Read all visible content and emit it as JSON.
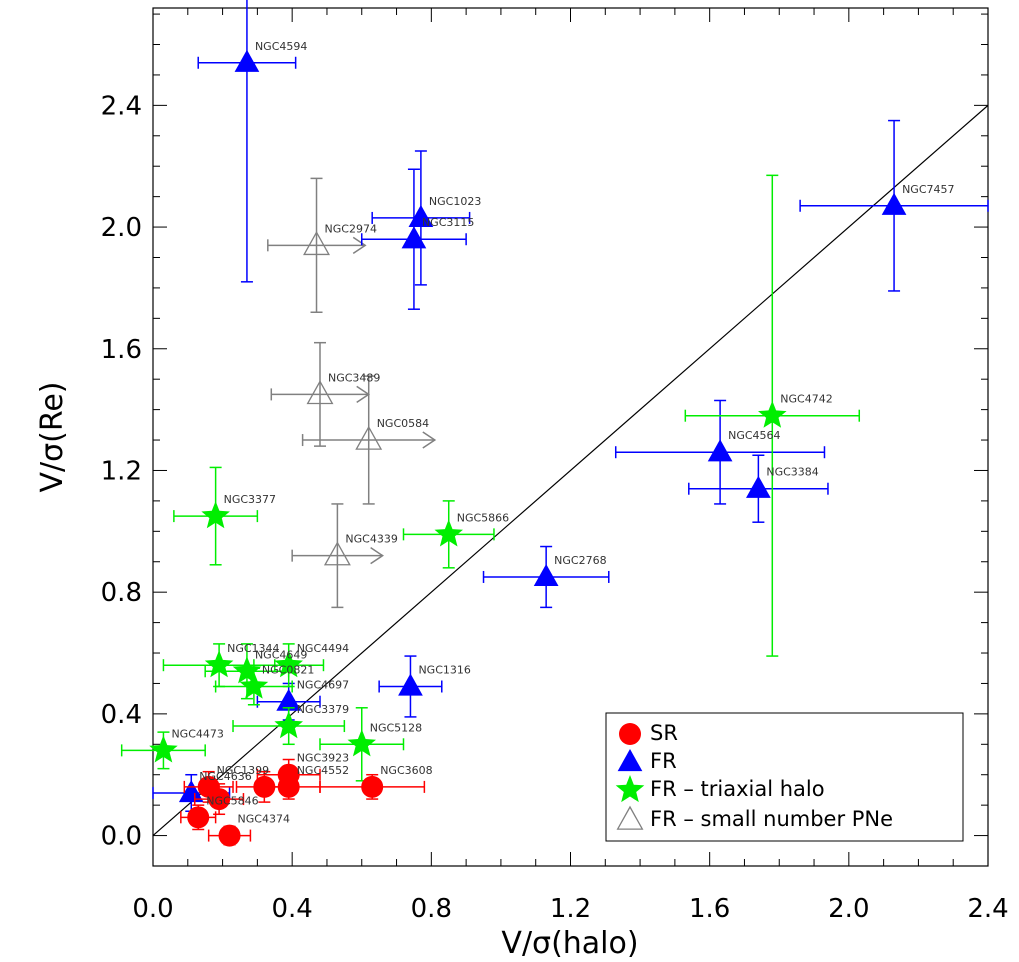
{
  "chart_data": {
    "type": "scatter",
    "xlabel": "V/σ(halo)",
    "ylabel": "V/σ(Re)",
    "xlim": [
      0.0,
      2.4
    ],
    "ylim": [
      -0.1,
      2.72
    ],
    "xticks": [
      "0.0",
      "0.4",
      "0.8",
      "1.2",
      "1.6",
      "2.0",
      "2.4"
    ],
    "yticks": [
      "0.0",
      "0.4",
      "0.8",
      "1.2",
      "1.6",
      "2.0",
      "2.4"
    ],
    "grid": false,
    "reference_line": {
      "slope": 1,
      "intercept": 0
    },
    "legend": {
      "placement": "bottom-right",
      "entries": [
        "SR",
        "FR",
        "FR – triaxial halo",
        "FR – small number PNe"
      ]
    },
    "colors": {
      "SR": "#ff0000",
      "FR": "#0000ff",
      "FR_triaxial": "#00ee00",
      "FR_small": "#808080",
      "line": "#000000"
    },
    "series": [
      {
        "name": "SR",
        "marker": "circle",
        "points": [
          {
            "label": "NGC4374",
            "x": 0.22,
            "y": 0.0,
            "xerr": 0.06,
            "yerr": 0.03
          },
          {
            "label": "NGC5846",
            "x": 0.13,
            "y": 0.06,
            "xerr": 0.05,
            "yerr": 0.04
          },
          {
            "label": "NGC1399",
            "x": 0.16,
            "y": 0.16,
            "xerr": 0.07,
            "yerr": 0.05
          },
          {
            "label": "",
            "x": 0.19,
            "y": 0.12,
            "xerr": 0.07,
            "yerr": 0.05
          },
          {
            "label": "",
            "x": 0.32,
            "y": 0.16,
            "xerr": 0.08,
            "yerr": 0.05
          },
          {
            "label": "NGC3923",
            "x": 0.39,
            "y": 0.2,
            "xerr": 0.09,
            "yerr": 0.05
          },
          {
            "label": "NGC4552",
            "x": 0.39,
            "y": 0.16,
            "xerr": 0.09,
            "yerr": 0.04
          },
          {
            "label": "NGC3608",
            "x": 0.63,
            "y": 0.16,
            "xerr": 0.15,
            "yerr": 0.04
          }
        ]
      },
      {
        "name": "FR",
        "marker": "triangle",
        "points": [
          {
            "label": "NGC4594",
            "x": 0.27,
            "y": 2.54,
            "xerr": 0.14,
            "yerr": 0.72
          },
          {
            "label": "NGC1023",
            "x": 0.77,
            "y": 2.03,
            "xerr": 0.14,
            "yerr": 0.22
          },
          {
            "label": "NGC3115",
            "x": 0.75,
            "y": 1.96,
            "xerr": 0.15,
            "yerr": 0.23
          },
          {
            "label": "NGC7457",
            "x": 2.13,
            "y": 2.07,
            "xerr": 0.27,
            "yerr": 0.28
          },
          {
            "label": "NGC4564",
            "x": 1.63,
            "y": 1.26,
            "xerr": 0.3,
            "yerr": 0.17
          },
          {
            "label": "NGC3384",
            "x": 1.74,
            "y": 1.14,
            "xerr": 0.2,
            "yerr": 0.11
          },
          {
            "label": "NGC2768",
            "x": 1.13,
            "y": 0.85,
            "xerr": 0.18,
            "yerr": 0.1
          },
          {
            "label": "NGC1316",
            "x": 0.74,
            "y": 0.49,
            "xerr": 0.09,
            "yerr": 0.1
          },
          {
            "label": "NGC4697",
            "x": 0.39,
            "y": 0.44,
            "xerr": 0.09,
            "yerr": 0.06
          },
          {
            "label": "NGC4636",
            "x": 0.11,
            "y": 0.14,
            "xerr": 0.11,
            "yerr": 0.06
          }
        ]
      },
      {
        "name": "FR – triaxial halo",
        "marker": "star",
        "points": [
          {
            "label": "NGC4742",
            "x": 1.78,
            "y": 1.38,
            "xerr": 0.25,
            "yerr": 0.79
          },
          {
            "label": "NGC3377",
            "x": 0.18,
            "y": 1.05,
            "xerr": 0.12,
            "yerr": 0.16
          },
          {
            "label": "NGC5866",
            "x": 0.85,
            "y": 0.99,
            "xerr": 0.13,
            "yerr": 0.11
          },
          {
            "label": "NGC1344",
            "x": 0.19,
            "y": 0.56,
            "xerr": 0.16,
            "yerr": 0.07
          },
          {
            "label": "NGC4649",
            "x": 0.27,
            "y": 0.54,
            "xerr": 0.12,
            "yerr": 0.09
          },
          {
            "label": "NGC4494",
            "x": 0.39,
            "y": 0.56,
            "xerr": 0.1,
            "yerr": 0.07
          },
          {
            "label": "NGC0821",
            "x": 0.29,
            "y": 0.49,
            "xerr": 0.11,
            "yerr": 0.06
          },
          {
            "label": "NGC3379",
            "x": 0.39,
            "y": 0.36,
            "xerr": 0.16,
            "yerr": 0.06
          },
          {
            "label": "NGC5128",
            "x": 0.6,
            "y": 0.3,
            "xerr": 0.12,
            "yerr": 0.12
          },
          {
            "label": "NGC4473",
            "x": 0.03,
            "y": 0.28,
            "xerr": 0.12,
            "yerr": 0.06
          }
        ]
      },
      {
        "name": "FR – small number PNe",
        "marker": "open-triangle",
        "points": [
          {
            "label": "NGC2974",
            "x": 0.47,
            "y": 1.94,
            "xerr": 0.14,
            "yerr": 0.22,
            "lower_limit_x": true
          },
          {
            "label": "NGC3489",
            "x": 0.48,
            "y": 1.45,
            "xerr": 0.14,
            "yerr": 0.17,
            "lower_limit_x": true
          },
          {
            "label": "NGC0584",
            "x": 0.62,
            "y": 1.3,
            "xerr": 0.19,
            "yerr": 0.21,
            "lower_limit_x": true
          },
          {
            "label": "NGC4339",
            "x": 0.53,
            "y": 0.92,
            "xerr": 0.13,
            "yerr": 0.17,
            "lower_limit_x": true
          }
        ]
      }
    ]
  }
}
